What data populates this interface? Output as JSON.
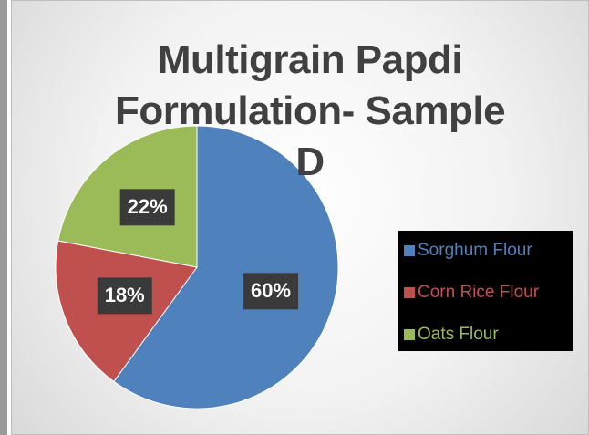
{
  "chart_data": {
    "type": "pie",
    "title": "Multigrain Papdi Formulation- Sample D",
    "categories": [
      "Sorghum Flour",
      "Corn Rice Flour",
      "Oats Flour"
    ],
    "values": [
      60,
      18,
      22
    ],
    "value_labels": [
      "60%",
      "18%",
      "22%"
    ],
    "colors": [
      "#4f81bd",
      "#c0504d",
      "#9bbb59"
    ],
    "legend": "right"
  }
}
